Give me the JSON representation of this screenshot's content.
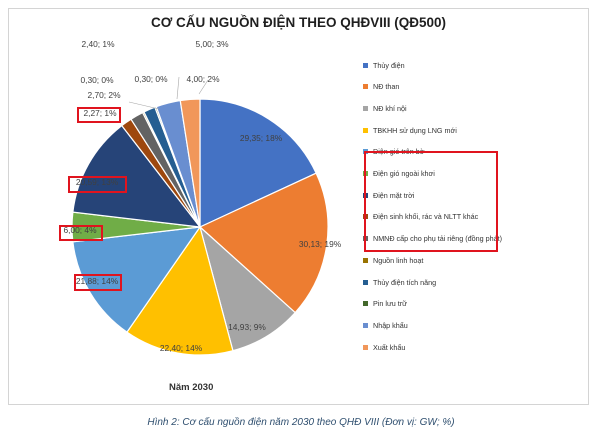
{
  "chart_data": {
    "type": "pie",
    "title": "CƠ CẤU NGUỒN ĐIỆN THEO QHĐVIII (QĐ500)",
    "subtitle": "Năm 2030",
    "legend_position": "right",
    "slices": [
      {
        "name": "Thủy điện",
        "value": 29.35,
        "percent": 18,
        "label": "29,35; 18%",
        "color": "#4472c4"
      },
      {
        "name": "NĐ than",
        "value": 30.13,
        "percent": 19,
        "label": "30,13; 19%",
        "color": "#ed7d31"
      },
      {
        "name": "NĐ khí nội",
        "value": 14.93,
        "percent": 9,
        "label": "14,93; 9%",
        "color": "#a5a5a5"
      },
      {
        "name": "TBKHH sử dụng LNG mới",
        "value": 22.4,
        "percent": 14,
        "label": "22,40; 14%",
        "color": "#ffc000"
      },
      {
        "name": "Điện gió trên bờ",
        "value": 21.88,
        "percent": 14,
        "label": "21,88; 14%",
        "color": "#5b9bd5",
        "highlighted": true
      },
      {
        "name": "Điện gió ngoài khơi",
        "value": 6.0,
        "percent": 4,
        "label": "6,00; 4%",
        "color": "#70ad47",
        "highlighted": true
      },
      {
        "name": "Điện mặt trời",
        "value": 20.59,
        "percent": 13,
        "label": "20,59; 13%",
        "color": "#264478",
        "highlighted": true
      },
      {
        "name": "Điện sinh khối, rác và NLTT khác",
        "value": 2.27,
        "percent": 1,
        "label": "2,27; 1%",
        "color": "#9e480e",
        "highlighted": true
      },
      {
        "name": "NMNĐ cấp cho phụ tải riêng (đồng phát)",
        "value": 2.7,
        "percent": 2,
        "label": "2,70; 2%",
        "color": "#636363"
      },
      {
        "name": "Nguồn linh hoạt",
        "value": 0.3,
        "percent": 0,
        "label": "0,30; 0%",
        "color": "#997300"
      },
      {
        "name": "Thủy điện tích năng",
        "value": 2.4,
        "percent": 1,
        "label": "2,40; 1%",
        "color": "#255e91"
      },
      {
        "name": "Pin lưu trữ",
        "value": 0.3,
        "percent": 0,
        "label": "0,30; 0%",
        "color": "#43682b"
      },
      {
        "name": "Nhập khẩu",
        "value": 5.0,
        "percent": 3,
        "label": "5,00; 3%",
        "color": "#698ed0"
      },
      {
        "name": "Xuất khẩu",
        "value": 4.0,
        "percent": 2,
        "label": "4,00; 2%",
        "color": "#f1975a"
      }
    ]
  },
  "caption": "Hình 2: Cơ cấu nguồn điện năm 2030 theo QHĐ VIII (Đơn vị: GW; %)"
}
